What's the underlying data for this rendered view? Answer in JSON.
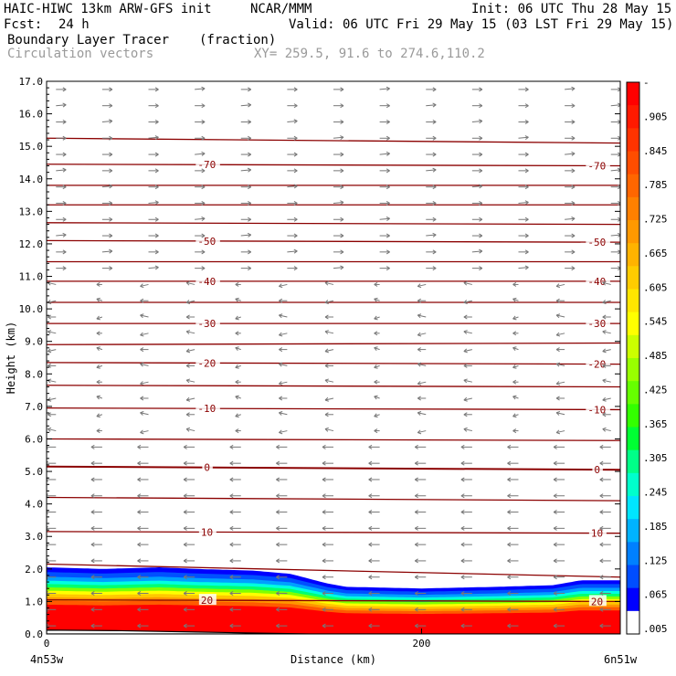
{
  "header": {
    "model": "HAIC-HIWC 13km ARW-GFS init",
    "org": "NCAR/MMM",
    "fcst_label": "Fcst:",
    "fcst_value": "24 h",
    "init": "Init: 06 UTC Thu 28 May 15",
    "valid": "Valid: 06 UTC Fri 29 May 15 (03 LST Fri 29 May 15)",
    "field": "Boundary Layer Tracer",
    "units": "(fraction)",
    "vectors": "Circulation vectors",
    "xy": "XY= 259.5, 91.6 to 274.6,110.2"
  },
  "chart_data": {
    "type": "heatmap",
    "xlabel": "Distance (km)",
    "ylabel": "Height (km)",
    "x_range": [
      0,
      306
    ],
    "ylim": [
      0,
      17
    ],
    "y_ticks": [
      "0.0",
      "1.0",
      "2.0",
      "3.0",
      "4.0",
      "5.0",
      "6.0",
      "7.0",
      "8.0",
      "9.0",
      "10.0",
      "11.0",
      "12.0",
      "13.0",
      "14.0",
      "15.0",
      "16.0",
      "17.0"
    ],
    "x_ticks": [
      {
        "value": 0,
        "label": "0"
      },
      {
        "value": 200,
        "label": "200"
      }
    ],
    "x_end_labels": [
      "4n53w",
      "6n51w"
    ],
    "colorbar": {
      "labels": [
        "-",
        ".905",
        ".845",
        ".785",
        ".725",
        ".665",
        ".605",
        ".545",
        ".485",
        ".425",
        ".365",
        ".305",
        ".245",
        ".185",
        ".125",
        ".065",
        ".005"
      ],
      "colors": [
        "#ff0000",
        "#ff1a00",
        "#ff3300",
        "#ff4d00",
        "#ff6600",
        "#ff8000",
        "#ff9900",
        "#ffb300",
        "#ffcc00",
        "#ffe600",
        "#ffff00",
        "#ccff00",
        "#99ff00",
        "#66ff00",
        "#33ff00",
        "#00ff33",
        "#00ff88",
        "#00ffcc",
        "#00e5ff",
        "#00b3ff",
        "#0080ff",
        "#004dff",
        "#0000ff",
        "#ffffff"
      ]
    },
    "pbl_top": [
      {
        "x": 0,
        "h": 2.05
      },
      {
        "x": 30,
        "h": 2.0
      },
      {
        "x": 60,
        "h": 2.05
      },
      {
        "x": 80,
        "h": 2.0
      },
      {
        "x": 110,
        "h": 1.95
      },
      {
        "x": 130,
        "h": 1.85
      },
      {
        "x": 150,
        "h": 1.55
      },
      {
        "x": 160,
        "h": 1.45
      },
      {
        "x": 200,
        "h": 1.4
      },
      {
        "x": 240,
        "h": 1.45
      },
      {
        "x": 270,
        "h": 1.5
      },
      {
        "x": 285,
        "h": 1.65
      },
      {
        "x": 306,
        "h": 1.65
      }
    ],
    "terrain": [
      {
        "x": 0,
        "h": 0.12
      },
      {
        "x": 40,
        "h": 0.1
      },
      {
        "x": 80,
        "h": 0.06
      },
      {
        "x": 110,
        "h": 0.03
      },
      {
        "x": 140,
        "h": 0.0
      },
      {
        "x": 306,
        "h": 0.0
      }
    ],
    "isotherms": [
      {
        "label": "20",
        "left": 1.05,
        "right": 1.0
      },
      {
        "label": "10",
        "left": 3.15,
        "right": 3.1
      },
      {
        "label": "0",
        "left": 5.15,
        "right": 5.05
      },
      {
        "label": "-10",
        "left": 6.95,
        "right": 6.9
      },
      {
        "label": "-20",
        "left": 8.35,
        "right": 8.3
      },
      {
        "label": "-30",
        "left": 9.55,
        "right": 9.55
      },
      {
        "label": "-40",
        "left": 10.85,
        "right": 10.85
      },
      {
        "label": "-50",
        "left": 12.1,
        "right": 12.05
      },
      {
        "label": "-70",
        "left": 14.45,
        "right": 14.4
      }
    ],
    "extra_contours": [
      {
        "left": 2.15,
        "right": 1.75
      },
      {
        "left": 4.2,
        "right": 4.1
      },
      {
        "left": 6.0,
        "right": 5.95
      },
      {
        "left": 7.65,
        "right": 7.6
      },
      {
        "left": 8.9,
        "right": 8.95
      },
      {
        "left": 10.2,
        "right": 10.2
      },
      {
        "left": 11.45,
        "right": 11.45
      },
      {
        "left": 12.65,
        "right": 12.6
      },
      {
        "left": 13.2,
        "right": 13.2
      },
      {
        "left": 13.8,
        "right": 13.8
      },
      {
        "left": 15.25,
        "right": 15.1
      }
    ]
  }
}
